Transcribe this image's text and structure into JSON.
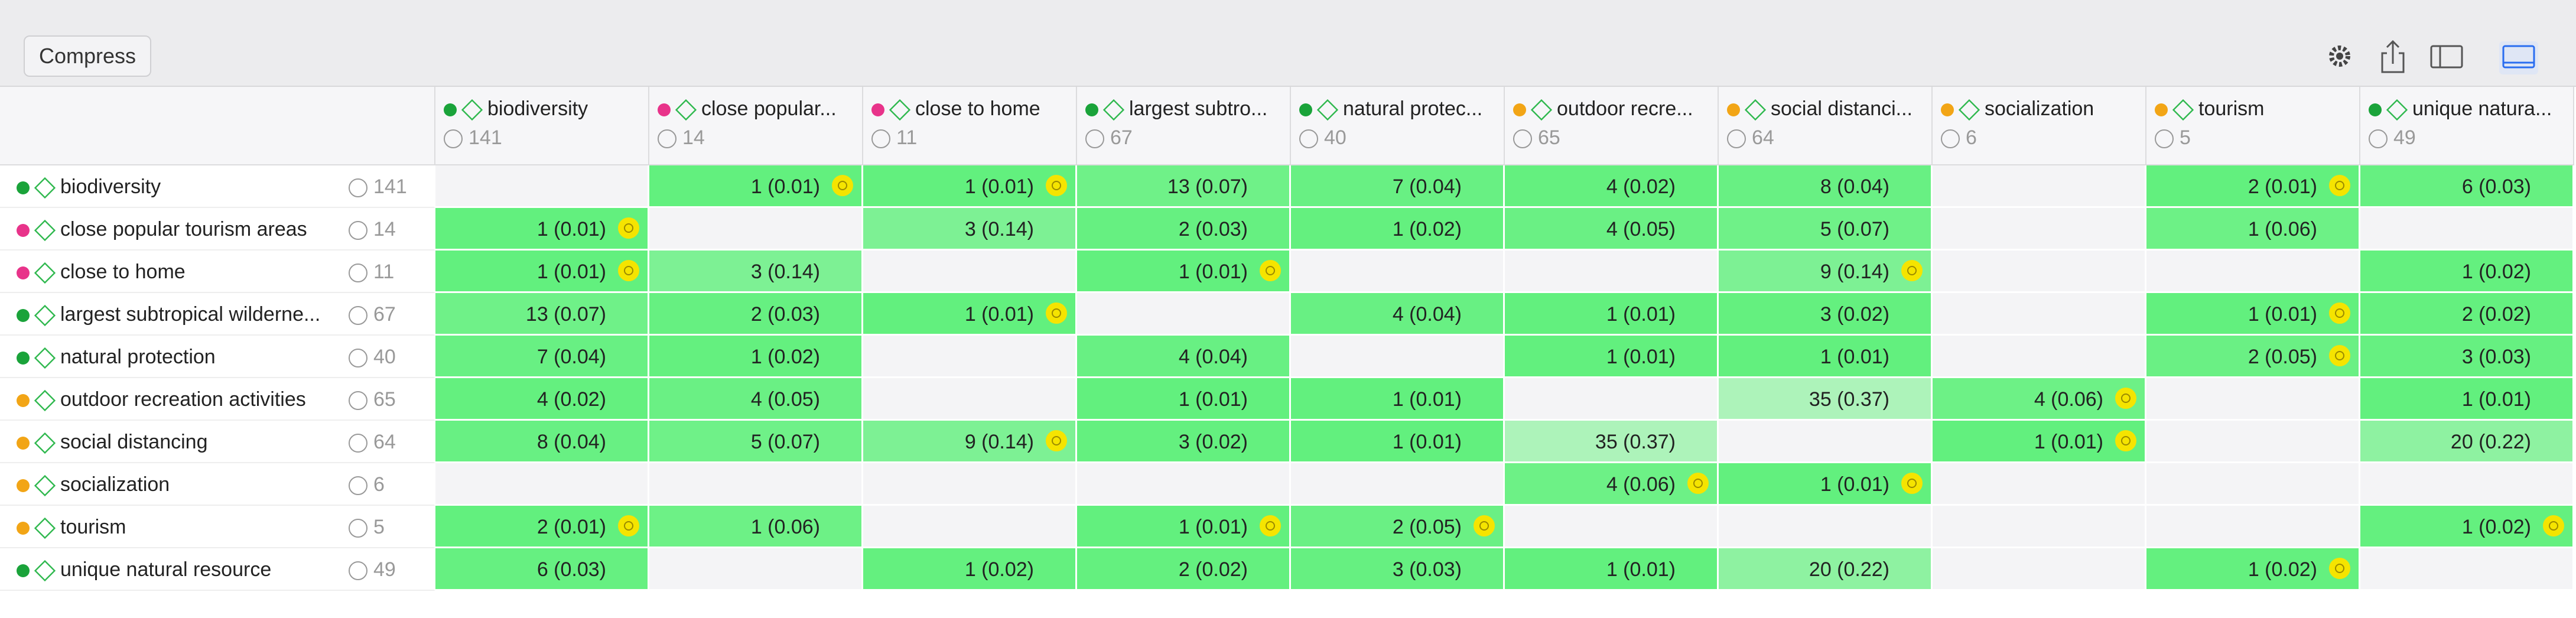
{
  "toolbar": {
    "button": "Compress"
  },
  "columns": [
    {
      "label": "biodiversity",
      "count": 141,
      "color": "#1aa33a"
    },
    {
      "label": "close popular...",
      "count": 14,
      "color": "#e8338a"
    },
    {
      "label": "close to home",
      "count": 11,
      "color": "#e8338a"
    },
    {
      "label": "largest subtro...",
      "count": 67,
      "color": "#1aa33a"
    },
    {
      "label": "natural protec...",
      "count": 40,
      "color": "#1aa33a"
    },
    {
      "label": "outdoor recre...",
      "count": 65,
      "color": "#f2a516"
    },
    {
      "label": "social distanci...",
      "count": 64,
      "color": "#f2a516"
    },
    {
      "label": "socialization",
      "count": 6,
      "color": "#f2a516"
    },
    {
      "label": "tourism",
      "count": 5,
      "color": "#f2a516"
    },
    {
      "label": "unique natura...",
      "count": 49,
      "color": "#1aa33a"
    }
  ],
  "rows": [
    {
      "label": "biodiversity",
      "count": 141,
      "color": "#1aa33a",
      "cells": [
        null,
        {
          "text": "1 (0.01)",
          "flag": true
        },
        {
          "text": "1 (0.01)",
          "flag": true
        },
        {
          "text": "13 (0.07)",
          "flag": false
        },
        {
          "text": "7 (0.04)",
          "flag": false
        },
        {
          "text": "4 (0.02)",
          "flag": false
        },
        {
          "text": "8 (0.04)",
          "flag": false
        },
        null,
        {
          "text": "2 (0.01)",
          "flag": true
        },
        {
          "text": "6 (0.03)",
          "flag": false
        }
      ]
    },
    {
      "label": "close popular tourism areas",
      "count": 14,
      "color": "#e8338a",
      "cells": [
        {
          "text": "1 (0.01)",
          "flag": true
        },
        null,
        {
          "text": "3 (0.14)",
          "flag": false
        },
        {
          "text": "2 (0.03)",
          "flag": false
        },
        {
          "text": "1 (0.02)",
          "flag": false
        },
        {
          "text": "4 (0.05)",
          "flag": false
        },
        {
          "text": "5 (0.07)",
          "flag": false
        },
        null,
        {
          "text": "1 (0.06)",
          "flag": false
        },
        null
      ]
    },
    {
      "label": "close to home",
      "count": 11,
      "color": "#e8338a",
      "cells": [
        {
          "text": "1 (0.01)",
          "flag": true
        },
        {
          "text": "3 (0.14)",
          "flag": false
        },
        null,
        {
          "text": "1 (0.01)",
          "flag": true
        },
        null,
        null,
        {
          "text": "9 (0.14)",
          "flag": true
        },
        null,
        null,
        {
          "text": "1 (0.02)",
          "flag": false
        }
      ]
    },
    {
      "label": "largest subtropical wilderne...",
      "count": 67,
      "color": "#1aa33a",
      "cells": [
        {
          "text": "13 (0.07)",
          "flag": false
        },
        {
          "text": "2 (0.03)",
          "flag": false
        },
        {
          "text": "1 (0.01)",
          "flag": true
        },
        null,
        {
          "text": "4 (0.04)",
          "flag": false
        },
        {
          "text": "1 (0.01)",
          "flag": false
        },
        {
          "text": "3 (0.02)",
          "flag": false
        },
        null,
        {
          "text": "1 (0.01)",
          "flag": true
        },
        {
          "text": "2 (0.02)",
          "flag": false
        }
      ]
    },
    {
      "label": "natural protection",
      "count": 40,
      "color": "#1aa33a",
      "cells": [
        {
          "text": "7 (0.04)",
          "flag": false
        },
        {
          "text": "1 (0.02)",
          "flag": false
        },
        null,
        {
          "text": "4 (0.04)",
          "flag": false
        },
        null,
        {
          "text": "1 (0.01)",
          "flag": false
        },
        {
          "text": "1 (0.01)",
          "flag": false
        },
        null,
        {
          "text": "2 (0.05)",
          "flag": true
        },
        {
          "text": "3 (0.03)",
          "flag": false
        }
      ]
    },
    {
      "label": "outdoor recreation activities",
      "count": 65,
      "color": "#f2a516",
      "cells": [
        {
          "text": "4 (0.02)",
          "flag": false
        },
        {
          "text": "4 (0.05)",
          "flag": false
        },
        null,
        {
          "text": "1 (0.01)",
          "flag": false
        },
        {
          "text": "1 (0.01)",
          "flag": false
        },
        null,
        {
          "text": "35 (0.37)",
          "flag": false
        },
        {
          "text": "4 (0.06)",
          "flag": true
        },
        null,
        {
          "text": "1 (0.01)",
          "flag": false
        }
      ]
    },
    {
      "label": "social distancing",
      "count": 64,
      "color": "#f2a516",
      "cells": [
        {
          "text": "8 (0.04)",
          "flag": false
        },
        {
          "text": "5 (0.07)",
          "flag": false
        },
        {
          "text": "9 (0.14)",
          "flag": true
        },
        {
          "text": "3 (0.02)",
          "flag": false
        },
        {
          "text": "1 (0.01)",
          "flag": false
        },
        {
          "text": "35 (0.37)",
          "flag": false
        },
        null,
        {
          "text": "1 (0.01)",
          "flag": true
        },
        null,
        {
          "text": "20 (0.22)",
          "flag": false
        }
      ]
    },
    {
      "label": "socialization",
      "count": 6,
      "color": "#f2a516",
      "cells": [
        null,
        null,
        null,
        null,
        null,
        {
          "text": "4 (0.06)",
          "flag": true
        },
        {
          "text": "1 (0.01)",
          "flag": true
        },
        null,
        null,
        null
      ]
    },
    {
      "label": "tourism",
      "count": 5,
      "color": "#f2a516",
      "cells": [
        {
          "text": "2 (0.01)",
          "flag": true
        },
        {
          "text": "1 (0.06)",
          "flag": false
        },
        null,
        {
          "text": "1 (0.01)",
          "flag": true
        },
        {
          "text": "2 (0.05)",
          "flag": true
        },
        null,
        null,
        null,
        null,
        {
          "text": "1 (0.02)",
          "flag": true
        }
      ]
    },
    {
      "label": "unique natural resource",
      "count": 49,
      "color": "#1aa33a",
      "cells": [
        {
          "text": "6 (0.03)",
          "flag": false
        },
        null,
        {
          "text": "1 (0.02)",
          "flag": false
        },
        {
          "text": "2 (0.02)",
          "flag": false
        },
        {
          "text": "3 (0.03)",
          "flag": false
        },
        {
          "text": "1 (0.01)",
          "flag": false
        },
        {
          "text": "20 (0.22)",
          "flag": false
        },
        null,
        {
          "text": "1 (0.02)",
          "flag": true
        },
        null
      ]
    }
  ]
}
